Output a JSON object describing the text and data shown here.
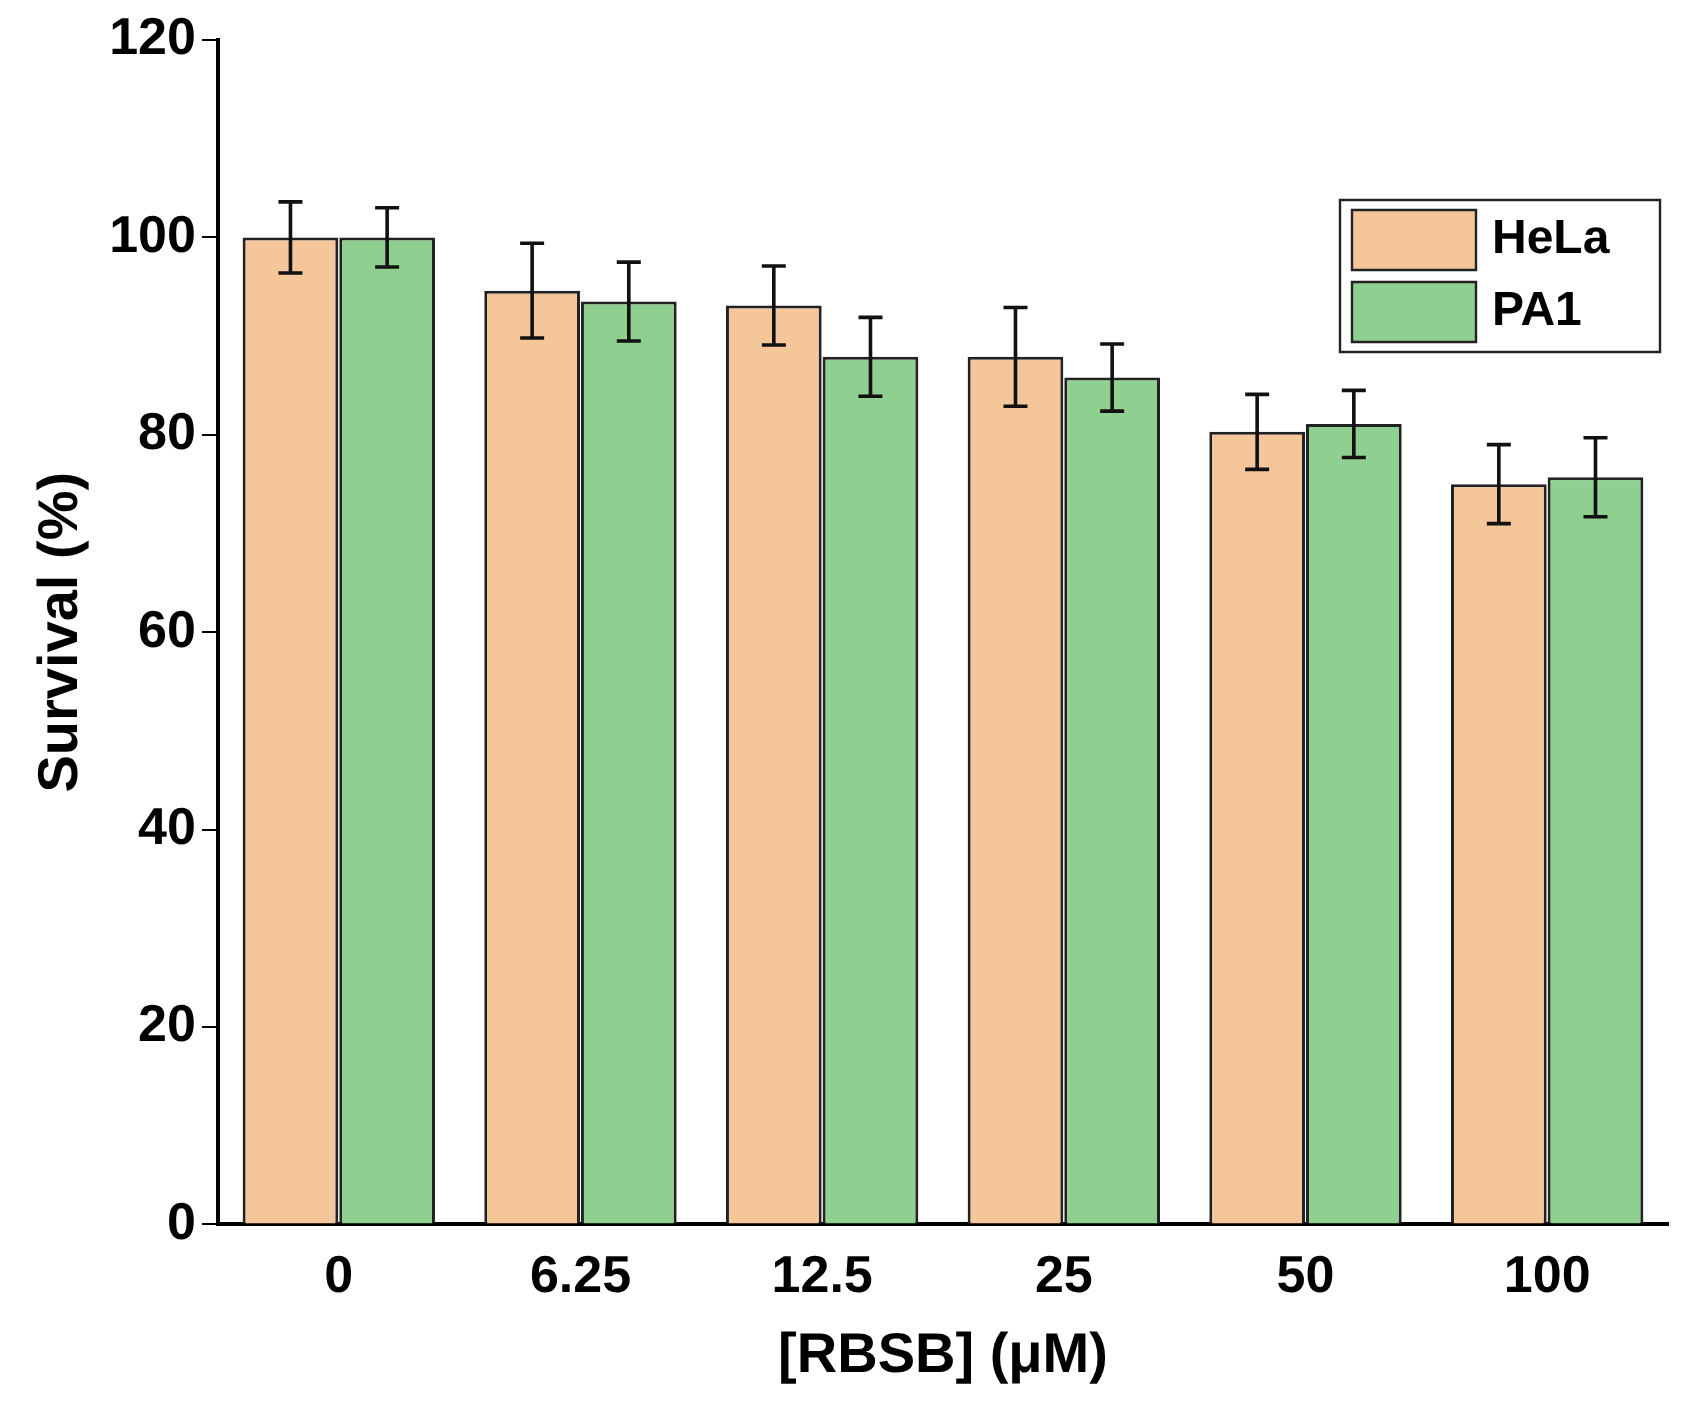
{
  "chart_data": {
    "type": "bar",
    "xlabel": "[RBSB] (μM)",
    "ylabel": "Survival (%)",
    "categories": [
      "0",
      "6.25",
      "12.5",
      "25",
      "50",
      "100"
    ],
    "series": [
      {
        "name": "HeLa",
        "color": "#f6c69b",
        "values": [
          100,
          94.6,
          93.1,
          87.9,
          80.3,
          75
        ],
        "errors": [
          3.6,
          4.8,
          4,
          5,
          3.8,
          4
        ]
      },
      {
        "name": "PA1",
        "color": "#8fd090",
        "values": [
          100,
          93.5,
          87.9,
          85.8,
          81.1,
          75.7
        ],
        "errors": [
          3,
          4,
          4,
          3.4,
          3.4,
          4
        ]
      }
    ],
    "ylim": [
      0,
      120
    ],
    "yticks": [
      0,
      20,
      40,
      60,
      80,
      100,
      120
    ],
    "grid": false,
    "legend": "top right"
  }
}
